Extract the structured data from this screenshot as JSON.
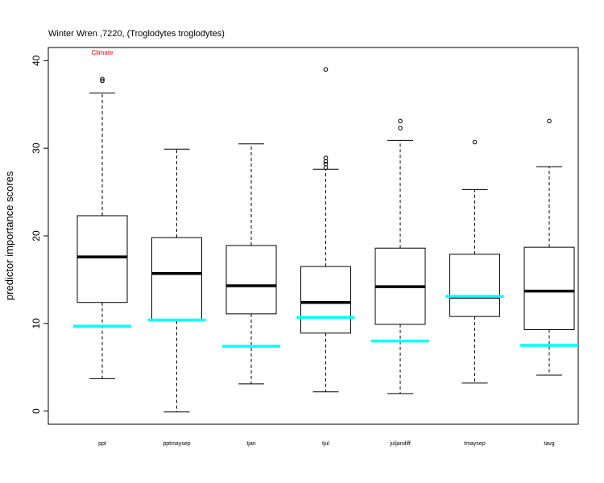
{
  "chart_data": {
    "type": "boxplot",
    "title": "Winter Wren ,7220, (Troglodytes troglodytes)",
    "ylabel": "predictor importance scores",
    "annotation": "Climate",
    "annotation_color": "#ff0000",
    "reference_color": "#00ffff",
    "ylim": [
      -1.5,
      41.5
    ],
    "yticks": [
      0,
      10,
      20,
      30,
      40
    ],
    "categories": [
      "ppt",
      "pptmaysep",
      "tjan",
      "tjul",
      "juljandiff",
      "tmaysep",
      "tavg"
    ],
    "boxes": [
      {
        "whisker_low": 3.7,
        "q1": 12.4,
        "median": 17.6,
        "q3": 22.3,
        "whisker_high": 36.3,
        "outliers": [
          37.7,
          37.9
        ],
        "reference": 9.7
      },
      {
        "whisker_low": -0.1,
        "q1": 10.3,
        "median": 15.7,
        "q3": 19.8,
        "whisker_high": 29.9,
        "outliers": [],
        "reference": 10.4
      },
      {
        "whisker_low": 3.1,
        "q1": 11.1,
        "median": 14.3,
        "q3": 18.9,
        "whisker_high": 30.5,
        "outliers": [],
        "reference": 7.4
      },
      {
        "whisker_low": 2.2,
        "q1": 8.9,
        "median": 12.4,
        "q3": 16.5,
        "whisker_high": 27.6,
        "outliers": [
          27.8,
          28.2,
          28.5,
          28.9,
          39.0
        ],
        "reference": 10.7
      },
      {
        "whisker_low": 2.0,
        "q1": 9.9,
        "median": 14.2,
        "q3": 18.6,
        "whisker_high": 30.9,
        "outliers": [
          32.3,
          33.1
        ],
        "reference": 8.0
      },
      {
        "whisker_low": 3.2,
        "q1": 10.8,
        "median": 13.0,
        "q3": 17.9,
        "whisker_high": 25.3,
        "outliers": [
          30.7
        ],
        "reference": 13.1
      },
      {
        "whisker_low": 4.1,
        "q1": 9.3,
        "median": 13.7,
        "q3": 18.7,
        "whisker_high": 27.9,
        "outliers": [
          33.1
        ],
        "reference": 7.5
      }
    ]
  }
}
